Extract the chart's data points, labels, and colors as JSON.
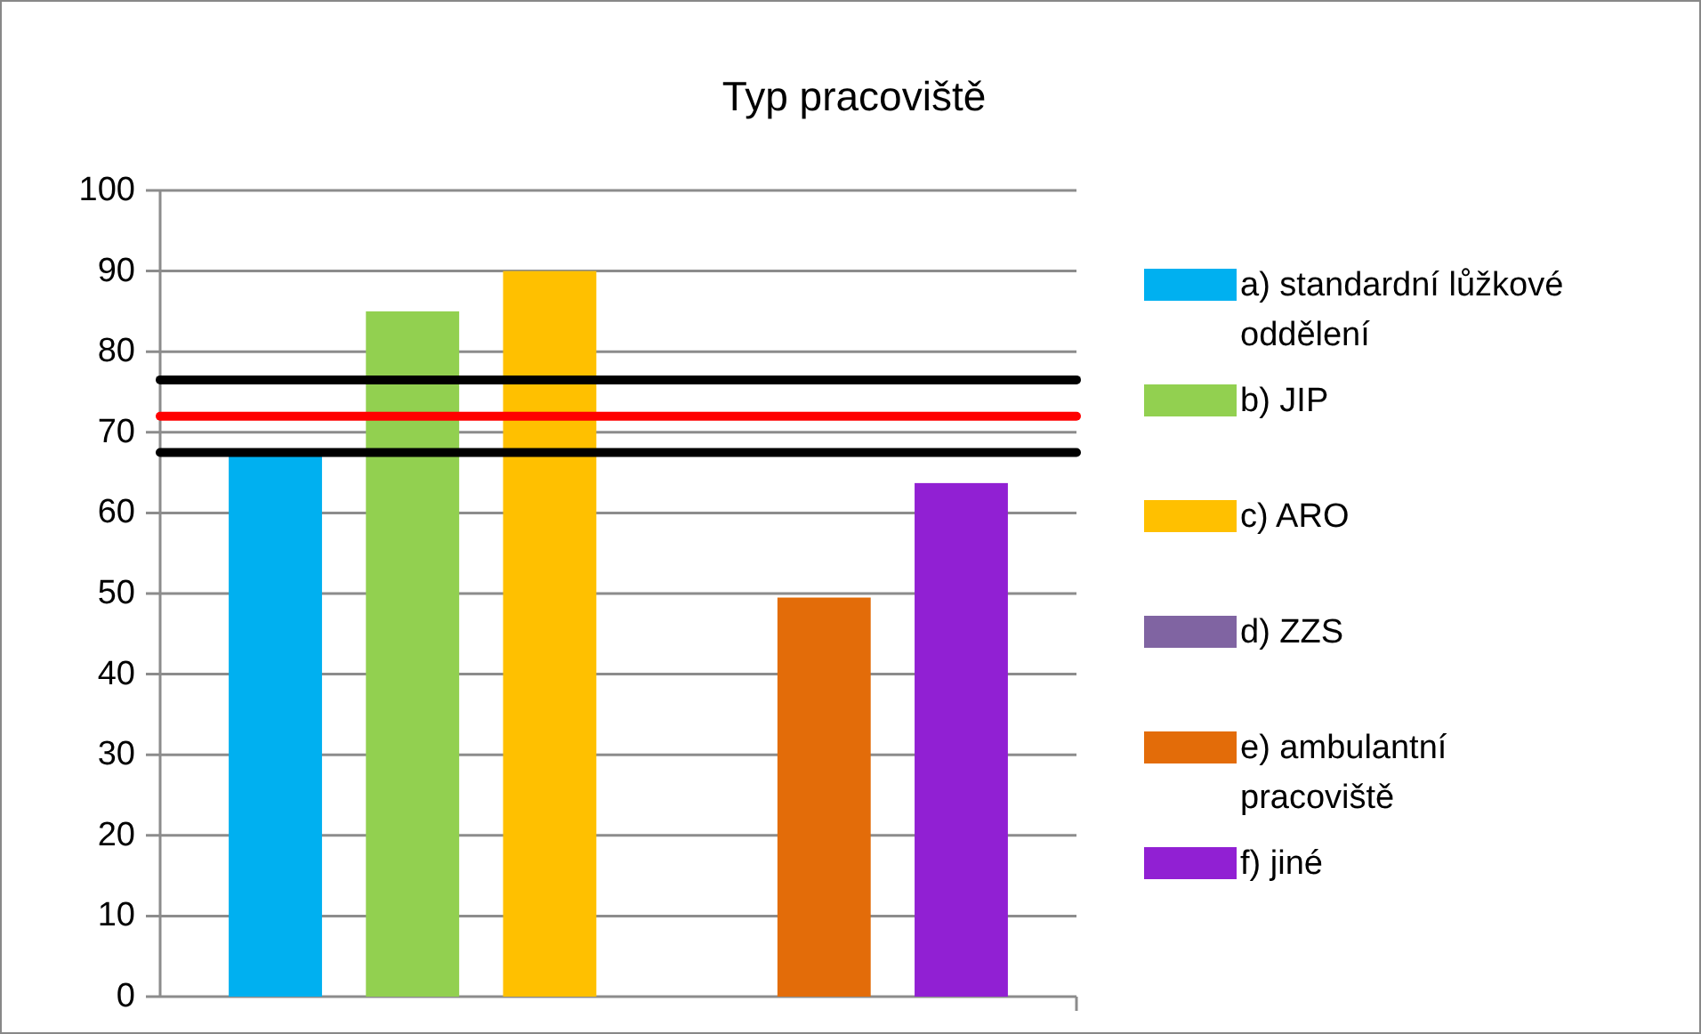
{
  "chart_data": {
    "type": "bar",
    "title": "Typ pracoviště",
    "categories": [
      null
    ],
    "series": [
      {
        "name": "a) standardní lůžkové oddělení",
        "color": "#00b0f0",
        "values": [
          67
        ]
      },
      {
        "name": "b) JIP",
        "color": "#92d050",
        "values": [
          85
        ]
      },
      {
        "name": "c) ARO",
        "color": "#ffc000",
        "values": [
          90
        ]
      },
      {
        "name": "d) ZZS",
        "color": "#8064a2",
        "values": [
          0
        ]
      },
      {
        "name": "e) ambulantní pracoviště",
        "color": "#e36c09",
        "values": [
          49.5
        ]
      },
      {
        "name": "f) jiné",
        "color": "#9120d3",
        "values": [
          63.7
        ]
      }
    ],
    "ylim": [
      0,
      100
    ],
    "yticks": [
      0,
      10,
      20,
      30,
      40,
      50,
      60,
      70,
      80,
      90,
      100
    ],
    "grid": "y",
    "legend": "right",
    "ref_lines": [
      {
        "axis": "y",
        "value": 76.5,
        "color": "#000000"
      },
      {
        "axis": "y",
        "value": 72,
        "color": "#ff0000"
      },
      {
        "axis": "y",
        "value": 67.5,
        "color": "#000000"
      }
    ]
  }
}
